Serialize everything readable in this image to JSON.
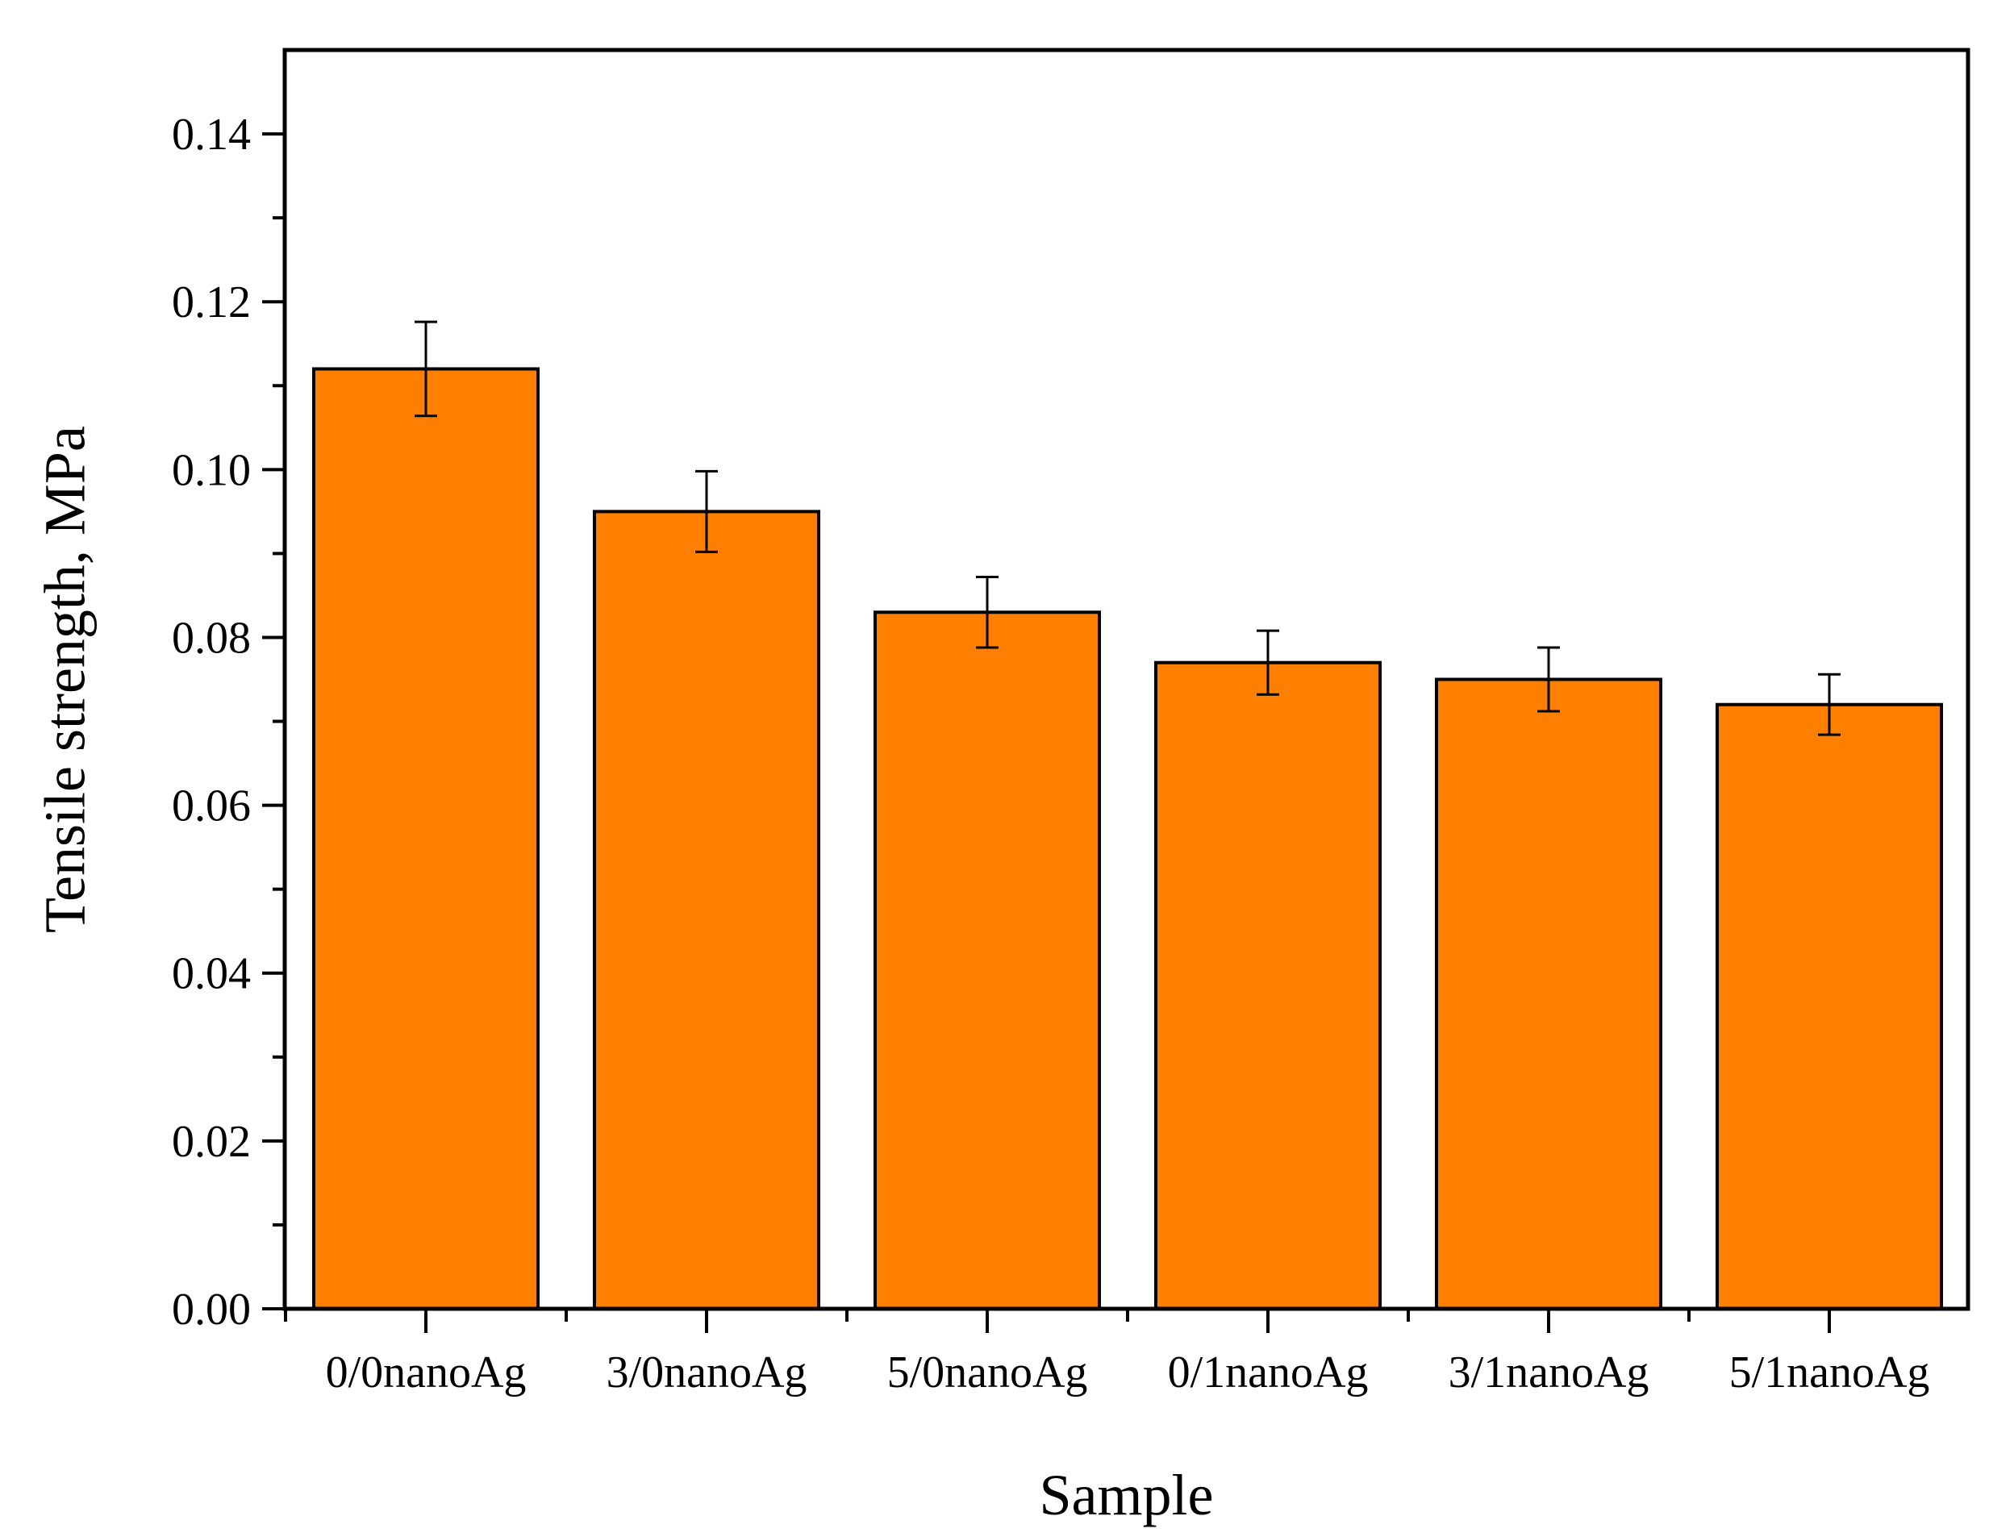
{
  "chart_data": {
    "type": "bar",
    "xlabel": "Sample",
    "ylabel": "Tensile strength, MPa",
    "ylim": [
      0,
      0.15
    ],
    "yticks": [
      "0.00",
      "0.02",
      "0.04",
      "0.06",
      "0.08",
      "0.10",
      "0.12",
      "0.14"
    ],
    "ytick_values": [
      0,
      0.02,
      0.04,
      0.06,
      0.08,
      0.1,
      0.12,
      0.14
    ],
    "categories": [
      "0/0nanoAg",
      "3/0nanoAg",
      "5/0nanoAg",
      "0/1nanoAg",
      "3/1nanoAg",
      "5/1nanoAg"
    ],
    "values": [
      0.112,
      0.095,
      0.083,
      0.077,
      0.075,
      0.072
    ],
    "errors": [
      0.0056,
      0.0048,
      0.0042,
      0.0038,
      0.0038,
      0.0036
    ],
    "bar_color": "#FF7F00",
    "grid": false,
    "legend": "none"
  }
}
